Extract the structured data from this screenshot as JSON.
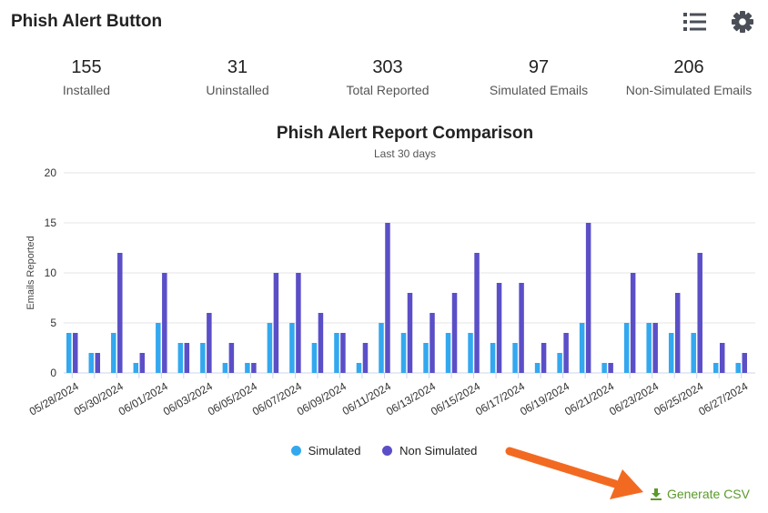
{
  "header": {
    "title": "Phish Alert Button",
    "list_icon": "list-icon",
    "settings_icon": "gear-icon"
  },
  "stats": [
    {
      "value": "155",
      "label": "Installed"
    },
    {
      "value": "31",
      "label": "Uninstalled"
    },
    {
      "value": "303",
      "label": "Total Reported"
    },
    {
      "value": "97",
      "label": "Simulated Emails"
    },
    {
      "value": "206",
      "label": "Non-Simulated Emails"
    }
  ],
  "legend": {
    "simulated": "Simulated",
    "non_simulated": "Non Simulated"
  },
  "actions": {
    "generate_csv": "Generate CSV",
    "csv_icon": "download-icon"
  },
  "colors": {
    "simulated": "#33a8ef",
    "non_simulated": "#5b4fc8",
    "csv": "#5a9a2a",
    "arrow": "#f26a21"
  },
  "chart_data": {
    "type": "bar",
    "title": "Phish Alert Report Comparison",
    "subtitle": "Last 30 days",
    "xlabel": "",
    "ylabel": "Emails Reported",
    "ylim": [
      0,
      20
    ],
    "yticks": [
      0,
      5,
      10,
      15,
      20
    ],
    "grid": true,
    "legend_position": "bottom",
    "categories": [
      "05/28/2024",
      "05/29/2024",
      "05/30/2024",
      "05/31/2024",
      "06/01/2024",
      "06/02/2024",
      "06/03/2024",
      "06/04/2024",
      "06/05/2024",
      "06/06/2024",
      "06/07/2024",
      "06/08/2024",
      "06/09/2024",
      "06/10/2024",
      "06/11/2024",
      "06/12/2024",
      "06/13/2024",
      "06/14/2024",
      "06/15/2024",
      "06/16/2024",
      "06/17/2024",
      "06/18/2024",
      "06/19/2024",
      "06/20/2024",
      "06/21/2024",
      "06/22/2024",
      "06/23/2024",
      "06/24/2024",
      "06/25/2024",
      "06/26/2024",
      "06/27/2024"
    ],
    "tick_labels": [
      "05/28/2024",
      "",
      "05/30/2024",
      "",
      "06/01/2024",
      "",
      "06/03/2024",
      "",
      "06/05/2024",
      "",
      "06/07/2024",
      "",
      "06/09/2024",
      "",
      "06/11/2024",
      "",
      "06/13/2024",
      "",
      "06/15/2024",
      "",
      "06/17/2024",
      "",
      "06/19/2024",
      "",
      "06/21/2024",
      "",
      "06/23/2024",
      "",
      "06/25/2024",
      "",
      "06/27/2024"
    ],
    "series": [
      {
        "name": "Simulated",
        "values": [
          4,
          2,
          4,
          1,
          5,
          3,
          3,
          1,
          1,
          5,
          5,
          3,
          4,
          1,
          5,
          4,
          3,
          4,
          4,
          3,
          3,
          1,
          2,
          5,
          1,
          5,
          5,
          4,
          4,
          1,
          1
        ]
      },
      {
        "name": "Non Simulated",
        "values": [
          4,
          2,
          12,
          2,
          10,
          3,
          6,
          3,
          1,
          10,
          10,
          6,
          4,
          3,
          15,
          8,
          6,
          8,
          12,
          9,
          9,
          3,
          4,
          15,
          1,
          10,
          5,
          8,
          12,
          3,
          2
        ]
      }
    ]
  }
}
